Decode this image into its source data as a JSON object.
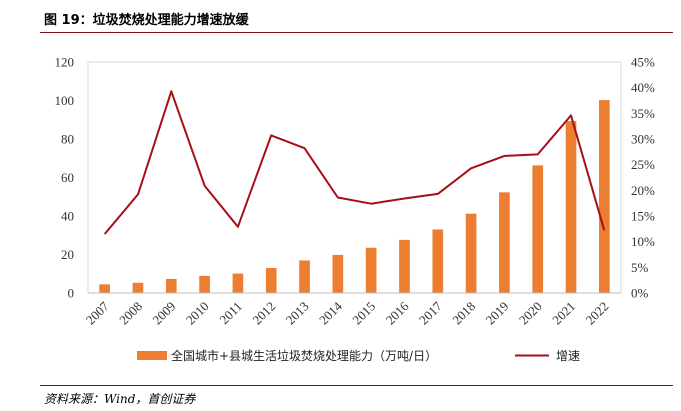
{
  "title": "图 19：垃圾焚烧处理能力增速放缓",
  "source": "资料来源：Wind，首创证券",
  "chart_data": {
    "type": "bar",
    "categories": [
      "2007",
      "2008",
      "2009",
      "2010",
      "2011",
      "2012",
      "2013",
      "2014",
      "2015",
      "2016",
      "2017",
      "2018",
      "2019",
      "2020",
      "2021",
      "2022"
    ],
    "series": [
      {
        "name": "全国城市+县城生活垃圾焚烧处理能力（万吨/日）",
        "type": "bar",
        "axis": "left",
        "color": "#ED7D31",
        "values": [
          4.5,
          5.3,
          7.3,
          8.9,
          10.1,
          13.0,
          16.9,
          19.8,
          23.5,
          27.6,
          33.0,
          41.2,
          52.3,
          66.3,
          89.3,
          100.2
        ]
      },
      {
        "name": "增速",
        "type": "line",
        "axis": "right",
        "color": "#A50F15",
        "values": [
          11.5,
          19.2,
          39.3,
          20.9,
          12.9,
          30.7,
          28.2,
          18.6,
          17.4,
          18.4,
          19.3,
          24.3,
          26.7,
          27.0,
          34.6,
          12.2
        ]
      }
    ],
    "ylim": [
      0,
      120
    ],
    "yticks": [
      0,
      20,
      40,
      60,
      80,
      100,
      120
    ],
    "y2lim": [
      0,
      45
    ],
    "y2ticks": [
      "0%",
      "5%",
      "10%",
      "15%",
      "20%",
      "25%",
      "30%",
      "35%",
      "40%",
      "45%"
    ],
    "legend_position": "bottom",
    "grid": false
  }
}
